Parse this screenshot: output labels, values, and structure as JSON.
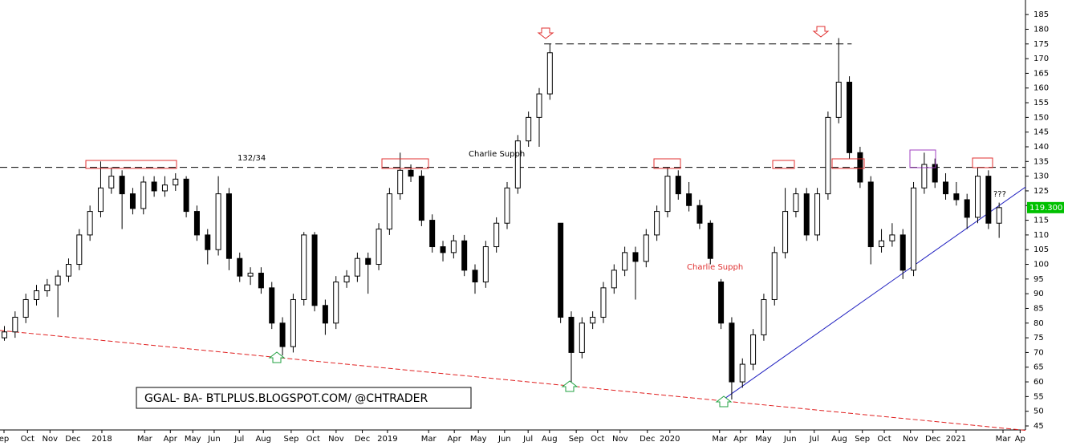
{
  "chart_data": {
    "type": "candlestick",
    "x": [
      0,
      2,
      4,
      6,
      8,
      10,
      12,
      14,
      16,
      18,
      20,
      22,
      24,
      26,
      28,
      30,
      32,
      34,
      36,
      38,
      40,
      42,
      44,
      46,
      48,
      50,
      52,
      54,
      56,
      58,
      60,
      62,
      64,
      66,
      68,
      70,
      72,
      74,
      76,
      78,
      80,
      82,
      84,
      86,
      88,
      90,
      92,
      94,
      96,
      98,
      100,
      102,
      104,
      106,
      108,
      110,
      112,
      114,
      116,
      118,
      120,
      122,
      124,
      126,
      128,
      130,
      132,
      134,
      136,
      138,
      140,
      142,
      144,
      146,
      148,
      150,
      152,
      154,
      156,
      158,
      160,
      162,
      164,
      166,
      168,
      170,
      172,
      174,
      176,
      178,
      180,
      182,
      184,
      186
    ],
    "ohlc": [
      [
        75,
        79,
        74,
        77
      ],
      [
        77,
        84,
        75,
        82
      ],
      [
        82,
        90,
        80,
        88
      ],
      [
        88,
        93,
        86,
        91
      ],
      [
        91,
        95,
        89,
        93
      ],
      [
        93,
        98,
        82,
        96
      ],
      [
        96,
        102,
        94,
        100
      ],
      [
        100,
        112,
        98,
        110
      ],
      [
        110,
        120,
        108,
        118
      ],
      [
        118,
        135,
        116,
        126
      ],
      [
        126,
        133,
        124,
        130
      ],
      [
        130,
        132,
        112,
        124
      ],
      [
        124,
        126,
        117,
        119
      ],
      [
        119,
        130,
        117,
        128
      ],
      [
        128,
        130,
        123,
        125
      ],
      [
        125,
        130,
        123,
        127
      ],
      [
        127,
        131,
        125,
        129
      ],
      [
        129,
        130,
        116,
        118
      ],
      [
        118,
        120,
        108,
        110
      ],
      [
        110,
        112,
        100,
        105
      ],
      [
        105,
        130,
        103,
        124
      ],
      [
        124,
        126,
        98,
        102
      ],
      [
        102,
        104,
        94,
        96
      ],
      [
        96,
        99,
        93,
        97
      ],
      [
        97,
        99,
        90,
        92
      ],
      [
        92,
        94,
        78,
        80
      ],
      [
        80,
        82,
        69,
        72
      ],
      [
        72,
        90,
        70,
        88
      ],
      [
        88,
        111,
        86,
        110
      ],
      [
        110,
        111,
        84,
        86
      ],
      [
        86,
        88,
        76,
        80
      ],
      [
        80,
        96,
        78,
        94
      ],
      [
        94,
        98,
        92,
        96
      ],
      [
        96,
        104,
        94,
        102
      ],
      [
        102,
        104,
        90,
        100
      ],
      [
        100,
        114,
        98,
        112
      ],
      [
        112,
        126,
        110,
        124
      ],
      [
        124,
        138,
        122,
        132
      ],
      [
        132,
        134,
        128,
        130
      ],
      [
        130,
        132,
        113,
        115
      ],
      [
        115,
        117,
        104,
        106
      ],
      [
        106,
        108,
        101,
        104
      ],
      [
        104,
        110,
        102,
        108
      ],
      [
        108,
        110,
        96,
        98
      ],
      [
        98,
        100,
        90,
        94
      ],
      [
        94,
        108,
        92,
        106
      ],
      [
        106,
        116,
        104,
        114
      ],
      [
        114,
        128,
        112,
        126
      ],
      [
        126,
        144,
        124,
        142
      ],
      [
        142,
        152,
        140,
        150
      ],
      [
        150,
        160,
        140,
        158
      ],
      [
        158,
        175,
        156,
        172
      ],
      [
        114,
        114,
        80,
        82
      ],
      [
        82,
        84,
        59,
        70
      ],
      [
        70,
        82,
        68,
        80
      ],
      [
        80,
        84,
        78,
        82
      ],
      [
        82,
        94,
        80,
        92
      ],
      [
        92,
        100,
        90,
        98
      ],
      [
        98,
        106,
        96,
        104
      ],
      [
        104,
        106,
        88,
        101
      ],
      [
        101,
        112,
        99,
        110
      ],
      [
        110,
        120,
        108,
        118
      ],
      [
        118,
        133,
        116,
        130
      ],
      [
        130,
        132,
        122,
        124
      ],
      [
        124,
        128,
        118,
        120
      ],
      [
        120,
        122,
        112,
        114
      ],
      [
        114,
        115,
        100,
        102
      ],
      [
        94,
        95,
        78,
        80
      ],
      [
        80,
        82,
        54,
        60
      ],
      [
        60,
        68,
        58,
        66
      ],
      [
        66,
        78,
        64,
        76
      ],
      [
        76,
        90,
        74,
        88
      ],
      [
        88,
        106,
        86,
        104
      ],
      [
        104,
        126,
        102,
        118
      ],
      [
        118,
        126,
        116,
        124
      ],
      [
        124,
        126,
        108,
        110
      ],
      [
        110,
        126,
        108,
        124
      ],
      [
        124,
        152,
        122,
        150
      ],
      [
        150,
        177,
        148,
        162
      ],
      [
        162,
        164,
        136,
        138
      ],
      [
        138,
        140,
        126,
        128
      ],
      [
        128,
        130,
        100,
        106
      ],
      [
        106,
        112,
        104,
        108
      ],
      [
        108,
        114,
        106,
        110
      ],
      [
        110,
        112,
        95,
        98
      ],
      [
        98,
        128,
        96,
        126
      ],
      [
        126,
        138,
        124,
        134
      ],
      [
        134,
        136,
        126,
        128
      ],
      [
        128,
        131,
        122,
        124
      ],
      [
        124,
        128,
        120,
        122
      ],
      [
        122,
        124,
        112,
        116
      ],
      [
        116,
        133,
        114,
        130
      ],
      [
        130,
        132,
        112,
        114
      ],
      [
        114,
        121,
        109,
        119.3
      ]
    ],
    "last_label": "119.300",
    "xlim": [
      -0.75,
      191
    ],
    "ylim": [
      45,
      187.5
    ],
    "yticks": [
      45,
      50,
      55,
      60,
      65,
      70,
      75,
      80,
      85,
      90,
      95,
      100,
      105,
      110,
      115,
      120,
      125,
      130,
      135,
      140,
      145,
      150,
      155,
      160,
      165,
      170,
      175,
      180,
      185
    ],
    "xticks": [
      {
        "value": 0,
        "label": "ep"
      },
      {
        "value": 4.4,
        "label": "Oct"
      },
      {
        "value": 8.6,
        "label": "Nov"
      },
      {
        "value": 12.9,
        "label": "Dec"
      },
      {
        "value": 18.3,
        "label": "2018"
      },
      {
        "value": 26.3,
        "label": "Mar"
      },
      {
        "value": 31.1,
        "label": "Apr"
      },
      {
        "value": 35.3,
        "label": "May"
      },
      {
        "value": 39.3,
        "label": "Jun"
      },
      {
        "value": 44,
        "label": "Jul"
      },
      {
        "value": 48.5,
        "label": "Aug"
      },
      {
        "value": 53.7,
        "label": "Sep"
      },
      {
        "value": 57.8,
        "label": "Oct"
      },
      {
        "value": 62.1,
        "label": "Nov"
      },
      {
        "value": 67,
        "label": "Dec"
      },
      {
        "value": 71.7,
        "label": "2019"
      },
      {
        "value": 79.4,
        "label": "Mar"
      },
      {
        "value": 84.2,
        "label": "Apr"
      },
      {
        "value": 88.7,
        "label": "May"
      },
      {
        "value": 93.6,
        "label": "Jun"
      },
      {
        "value": 98,
        "label": "Jul"
      },
      {
        "value": 102,
        "label": "Aug"
      },
      {
        "value": 107,
        "label": "Sep"
      },
      {
        "value": 111,
        "label": "Oct"
      },
      {
        "value": 115.2,
        "label": "Nov"
      },
      {
        "value": 120.3,
        "label": "Dec"
      },
      {
        "value": 124.5,
        "label": "2020"
      },
      {
        "value": 133.8,
        "label": "Mar"
      },
      {
        "value": 137.7,
        "label": "Apr"
      },
      {
        "value": 142,
        "label": "May"
      },
      {
        "value": 147,
        "label": "Jun"
      },
      {
        "value": 151.5,
        "label": "Jul"
      },
      {
        "value": 156.2,
        "label": "Aug"
      },
      {
        "value": 160.5,
        "label": "Sep"
      },
      {
        "value": 164.6,
        "label": "Oct"
      },
      {
        "value": 169.5,
        "label": "Nov"
      },
      {
        "value": 173.7,
        "label": "Dec"
      },
      {
        "value": 178,
        "label": "2021"
      },
      {
        "value": 186.8,
        "label": "Mar"
      },
      {
        "value": 190,
        "label": "Ap"
      }
    ],
    "levels": [
      {
        "y": 133,
        "x": [
          -0.75,
          191
        ],
        "color": "#000000"
      },
      {
        "y": 175,
        "x": [
          101,
          158.5
        ],
        "color": "#000000"
      }
    ],
    "trendlines": [
      {
        "x": [
          -0.75,
          191
        ],
        "y": [
          77.5,
          43.5
        ],
        "color": "#e02020",
        "dash": true
      },
      {
        "x": [
          134.5,
          191
        ],
        "y": [
          54,
          126.3
        ],
        "color": "#2020c0",
        "dash": false
      }
    ],
    "annotations": [
      "132/34",
      "Charlie Supph",
      "Charlie Supph",
      "???"
    ],
    "watermark": "GGAL- BA- BTLPLUS.BLOGSPOT.COM/ @CHTRADER"
  }
}
